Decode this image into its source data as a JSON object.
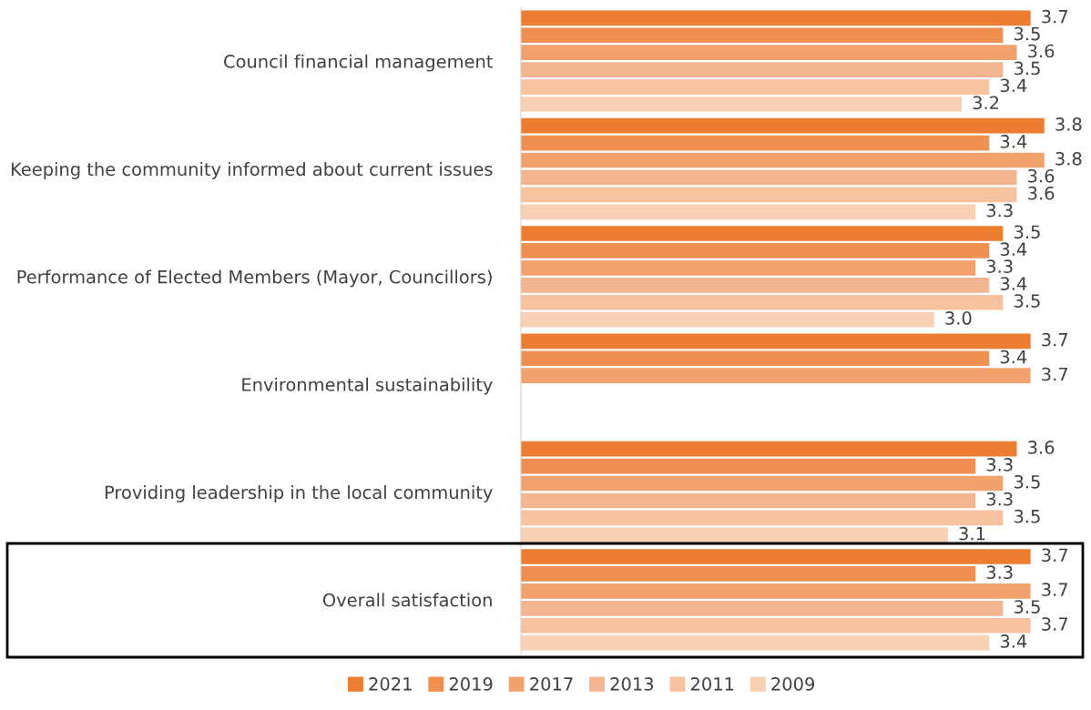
{
  "chart_data": {
    "type": "bar",
    "orientation": "horizontal",
    "categories": [
      "Council financial management",
      "Keeping the community informed about current issues",
      "Performance of Elected Members (Mayor, Councillors)",
      "Environmental sustainability",
      "Providing leadership in the local community",
      "Overall satisfaction"
    ],
    "series": [
      {
        "name": "2021",
        "color": "#ed7d31",
        "values": [
          3.7,
          3.8,
          3.5,
          3.7,
          3.6,
          3.7
        ],
        "value_labels": [
          "3.7",
          "3.8",
          "3.5",
          "3.7",
          "3.6",
          "3.7"
        ]
      },
      {
        "name": "2019",
        "color": "#ef8f50",
        "values": [
          3.5,
          3.4,
          3.4,
          3.4,
          3.3,
          3.3
        ],
        "value_labels": [
          "3.5",
          "3.4",
          "3.4",
          "3.4",
          "3.3",
          "3.3"
        ]
      },
      {
        "name": "2017",
        "color": "#f2a26d",
        "values": [
          3.6,
          3.8,
          3.3,
          3.7,
          3.5,
          3.7
        ],
        "value_labels": [
          "3.6",
          "3.8",
          "3.3",
          "3.7",
          "3.5",
          "3.7"
        ]
      },
      {
        "name": "2013",
        "color": "#f4b690",
        "values": [
          3.5,
          3.6,
          3.4,
          null,
          3.3,
          3.5
        ],
        "value_labels": [
          "3.5",
          "3.6",
          "3.4",
          null,
          "3.3",
          "3.5"
        ]
      },
      {
        "name": "2011",
        "color": "#f6c29f",
        "values": [
          3.4,
          3.6,
          3.5,
          null,
          3.5,
          3.7
        ],
        "value_labels": [
          "3.4",
          "3.6",
          "3.5",
          null,
          "3.5",
          "3.7"
        ]
      },
      {
        "name": "2009",
        "color": "#f8d0b4",
        "values": [
          3.2,
          3.3,
          3.0,
          null,
          3.1,
          3.4
        ],
        "value_labels": [
          "3.2",
          "3.3",
          "3.0",
          null,
          "3.1",
          "3.4"
        ]
      }
    ],
    "grid": false,
    "legend": "bottom"
  }
}
